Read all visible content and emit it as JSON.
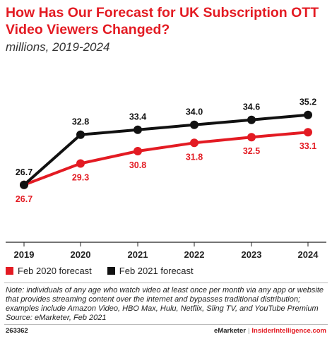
{
  "title": "How Has Our Forecast for UK Subscription OTT Video Viewers Changed?",
  "subtitle": "millions, 2019-2024",
  "chart_data": {
    "type": "line",
    "title": "How Has Our Forecast for UK Subscription OTT Video Viewers Changed?",
    "subtitle": "millions, 2019-2024",
    "x": [
      "2019",
      "2020",
      "2021",
      "2022",
      "2023",
      "2024"
    ],
    "series": [
      {
        "name": "Feb 2020 forecast",
        "color": "#e31b23",
        "values": [
          26.7,
          29.3,
          30.8,
          31.8,
          32.5,
          33.1
        ]
      },
      {
        "name": "Feb 2021 forecast",
        "color": "#111111",
        "values": [
          26.7,
          32.8,
          33.4,
          34.0,
          34.6,
          35.2
        ]
      }
    ],
    "ylim": [
      20,
      38
    ],
    "grid": false,
    "legend": "bottom-left"
  },
  "legend": {
    "items": [
      {
        "label": "Feb 2020 forecast",
        "color": "#e31b23"
      },
      {
        "label": "Feb 2021 forecast",
        "color": "#111111"
      }
    ]
  },
  "note": "Note: individuals of any age who watch video at least once per month via any app or website that provides streaming content over the internet and bypasses traditional distribution; examples include Amazon Video, HBO Max, Hulu, Netflix, Sling TV, and YouTube Premium",
  "source": "Source: eMarketer, Feb 2021",
  "footer": {
    "id": "263362",
    "brand_emarketer": "eMarketer",
    "brand_separator": "|",
    "brand_insider": "InsiderIntelligence.com"
  }
}
